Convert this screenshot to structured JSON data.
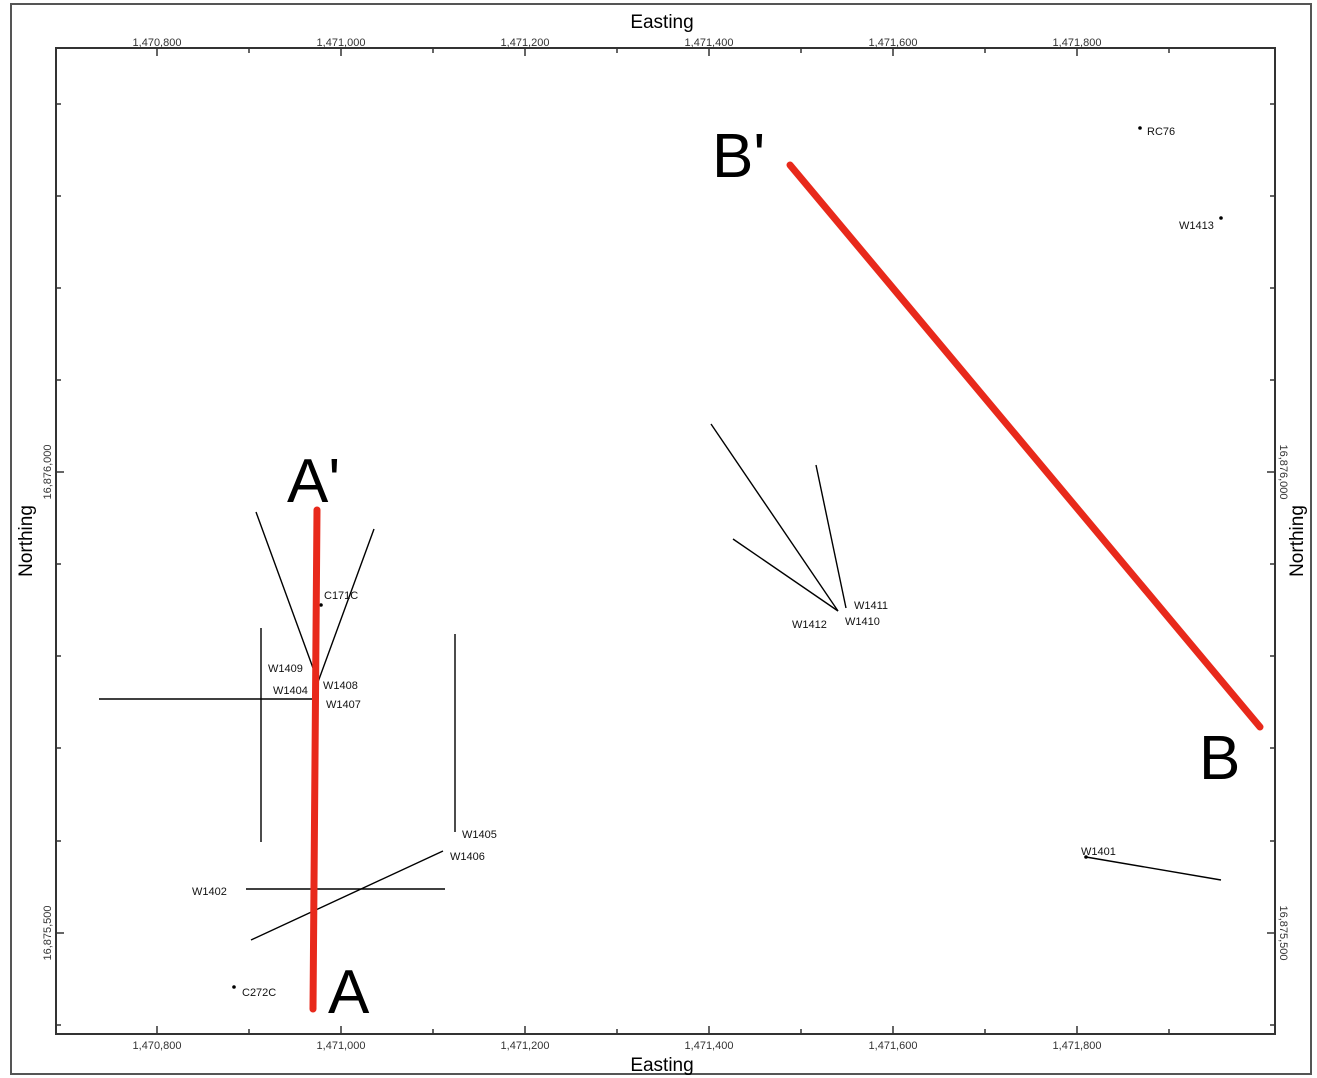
{
  "axes": {
    "x_title_top": "Easting",
    "x_title_bottom": "Easting",
    "y_title_left": "Northing",
    "y_title_right": "Northing",
    "x_ticks": [
      "1,470,800",
      "1,471,000",
      "1,471,200",
      "1,471,400",
      "1,471,600",
      "1,471,800"
    ],
    "y_ticks": [
      "16,876,000",
      "16,875,500"
    ]
  },
  "section_labels": [
    "A'",
    "A",
    "B'",
    "B"
  ],
  "wells": [
    "C171C",
    "W1409",
    "W1404",
    "W1408",
    "W1407",
    "W1405",
    "W1406",
    "W1402",
    "C272C",
    "W1411",
    "W1410",
    "W1412",
    "W1401",
    "RC76",
    "W1413"
  ],
  "colors": {
    "section_line": "#e8291b",
    "trace": "#000000",
    "frame": "#333333"
  }
}
